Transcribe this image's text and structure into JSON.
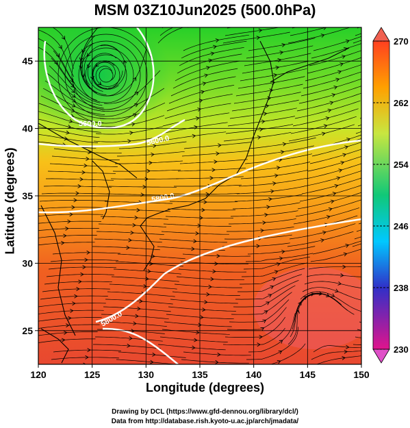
{
  "title": "MSM 03Z10Jun2025 (500.0hPa)",
  "axes": {
    "ylabel": "Latitude  (degrees)",
    "xlabel": "Longitude (degrees)",
    "xticks": [
      "120",
      "125",
      "130",
      "135",
      "140",
      "145",
      "150"
    ],
    "yticks": [
      "45",
      "40",
      "35",
      "30",
      "25"
    ],
    "xrange": [
      120,
      150
    ],
    "yrange": [
      22.5,
      47.5
    ],
    "grid": true
  },
  "colorbar": {
    "ticks": [
      "270",
      "262",
      "254",
      "246",
      "238",
      "230"
    ],
    "range": [
      230,
      270
    ],
    "colors": [
      "#e0148c",
      "#3030c8",
      "#00c8ff",
      "#10c878",
      "#c8e640",
      "#ffa000",
      "#ff4020"
    ]
  },
  "contours": {
    "labels": [
      "5600.0",
      "5600.0",
      "5800.0",
      "5800.0"
    ]
  },
  "credits": {
    "line1": "Drawing by DCL (https://www.gfd-dennou.org/library/dcl/)",
    "line2": "Data from http://database.rish.kyoto-u.ac.jp/arch/jmadata/"
  }
}
